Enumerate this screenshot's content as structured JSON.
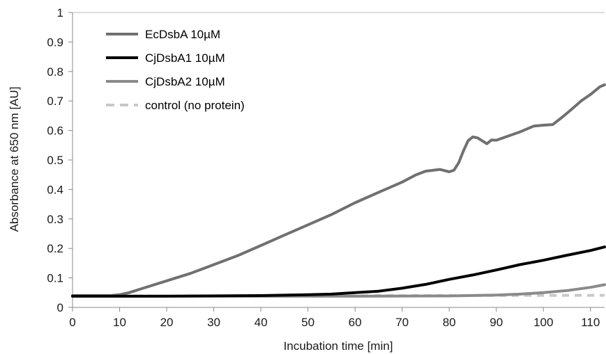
{
  "chart_data": {
    "type": "line",
    "xlabel": "Incubation time [min]",
    "ylabel": "Absorbance at 650 nm [AU]",
    "xlim": [
      0,
      113
    ],
    "ylim": [
      0,
      1
    ],
    "x_ticks": [
      "0",
      "10",
      "20",
      "30",
      "40",
      "50",
      "60",
      "70",
      "80",
      "90",
      "100",
      "110"
    ],
    "y_ticks": [
      "0",
      "0.1",
      "0.2",
      "0.3",
      "0.4",
      "0.5",
      "0.6",
      "0.7",
      "0.8",
      "0.9",
      "1"
    ],
    "grid": false,
    "legend_position": "top-left",
    "series": [
      {
        "name": "EcDsbA  10µM",
        "color": "#707070",
        "style": "solid",
        "points": [
          [
            0,
            0.04
          ],
          [
            5,
            0.04
          ],
          [
            8,
            0.04
          ],
          [
            10,
            0.043
          ],
          [
            12,
            0.05
          ],
          [
            15,
            0.065
          ],
          [
            20,
            0.09
          ],
          [
            25,
            0.115
          ],
          [
            30,
            0.145
          ],
          [
            35,
            0.175
          ],
          [
            40,
            0.21
          ],
          [
            45,
            0.245
          ],
          [
            50,
            0.28
          ],
          [
            55,
            0.315
          ],
          [
            60,
            0.355
          ],
          [
            65,
            0.39
          ],
          [
            70,
            0.425
          ],
          [
            73,
            0.45
          ],
          [
            75,
            0.462
          ],
          [
            78,
            0.468
          ],
          [
            80,
            0.46
          ],
          [
            81,
            0.465
          ],
          [
            82,
            0.49
          ],
          [
            83,
            0.53
          ],
          [
            84,
            0.565
          ],
          [
            85,
            0.578
          ],
          [
            86,
            0.575
          ],
          [
            87,
            0.565
          ],
          [
            88,
            0.555
          ],
          [
            89,
            0.568
          ],
          [
            90,
            0.567
          ],
          [
            92,
            0.578
          ],
          [
            95,
            0.595
          ],
          [
            98,
            0.615
          ],
          [
            100,
            0.618
          ],
          [
            102,
            0.62
          ],
          [
            104,
            0.645
          ],
          [
            106,
            0.672
          ],
          [
            108,
            0.7
          ],
          [
            110,
            0.722
          ],
          [
            112,
            0.748
          ],
          [
            113,
            0.755
          ]
        ]
      },
      {
        "name": "CjDsbA1 10µM",
        "color": "#000000",
        "style": "solid",
        "points": [
          [
            0,
            0.038
          ],
          [
            20,
            0.038
          ],
          [
            40,
            0.04
          ],
          [
            50,
            0.043
          ],
          [
            55,
            0.045
          ],
          [
            60,
            0.05
          ],
          [
            65,
            0.055
          ],
          [
            70,
            0.065
          ],
          [
            75,
            0.078
          ],
          [
            80,
            0.095
          ],
          [
            85,
            0.11
          ],
          [
            90,
            0.127
          ],
          [
            95,
            0.145
          ],
          [
            100,
            0.16
          ],
          [
            105,
            0.177
          ],
          [
            110,
            0.193
          ],
          [
            113,
            0.205
          ]
        ]
      },
      {
        "name": "CjDsbA2 10µM",
        "color": "#8a8a8a",
        "style": "solid",
        "points": [
          [
            0,
            0.038
          ],
          [
            40,
            0.038
          ],
          [
            60,
            0.038
          ],
          [
            80,
            0.039
          ],
          [
            90,
            0.042
          ],
          [
            95,
            0.045
          ],
          [
            100,
            0.05
          ],
          [
            105,
            0.057
          ],
          [
            110,
            0.068
          ],
          [
            113,
            0.077
          ]
        ]
      },
      {
        "name": "control (no protein)",
        "color": "#c8c8c8",
        "style": "dashed",
        "points": [
          [
            0,
            0.038
          ],
          [
            113,
            0.041
          ]
        ]
      }
    ]
  }
}
